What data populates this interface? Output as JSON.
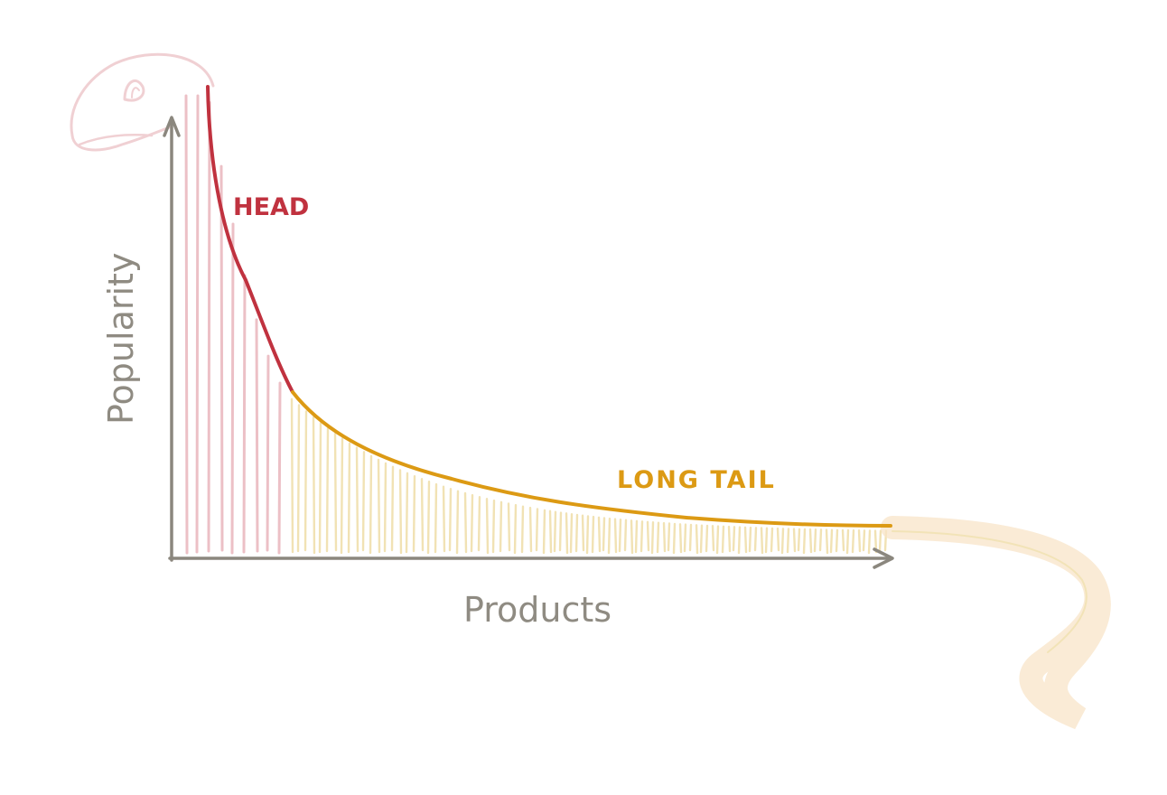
{
  "labels": {
    "head": "HEAD",
    "long_tail": "LONG TAIL",
    "x_axis": "Products",
    "y_axis": "Popularity"
  },
  "colors": {
    "head": "#c0323f",
    "head_bars": "#ecc0c6",
    "tail": "#dc9a14",
    "tail_bars": "#f1e2b4",
    "tail_extension": "#f8e4c8",
    "axis": "#8b877e",
    "axis_label": "#8f8b82",
    "dino_outline": "#f0d0d3"
  }
}
